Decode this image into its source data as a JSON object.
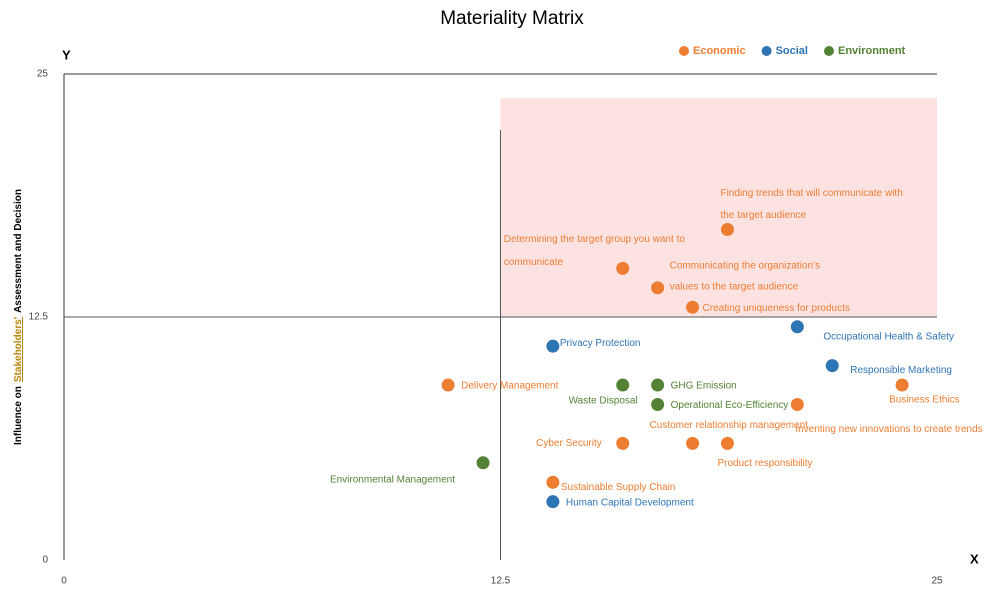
{
  "chart_data": {
    "type": "scatter",
    "title": "Materiality Matrix",
    "xlabel": "X",
    "ylabel": "Y",
    "ylabel_long": [
      "Influence on",
      "Stakeholders'",
      "Assessment and Decision"
    ],
    "xlim": [
      0,
      25
    ],
    "ylim": [
      0,
      25
    ],
    "xticks": [
      0,
      12.5,
      25
    ],
    "yticks": [
      0,
      12.5,
      25
    ],
    "legend": "top",
    "series": [
      {
        "name": "Economic",
        "color": "#ed7d31",
        "x": [
          19,
          16,
          17,
          18,
          11,
          24,
          21,
          16,
          18,
          19,
          14
        ],
        "y": [
          17,
          15,
          14,
          13,
          9,
          9,
          8,
          6,
          6,
          6,
          4
        ],
        "labels": [
          [
            "Finding trends that will communicate with",
            "the target audience"
          ],
          [
            "Determining the target group you want to",
            "communicate"
          ],
          [
            "Communicating the organization's",
            "values to the target audience"
          ],
          [
            "Creating uniqueness for products"
          ],
          [
            "Delivery Management"
          ],
          [
            "Business Ethics"
          ],
          [
            "Inventing new innovations to create trends"
          ],
          [
            "Cyber Security"
          ],
          [
            "Customer relationship management"
          ],
          [
            "Product responsibility"
          ],
          [
            "Sustainable Supply Chain"
          ]
        ]
      },
      {
        "name": "Social",
        "color": "#2e75b6",
        "x": [
          21,
          14,
          22,
          14
        ],
        "y": [
          12,
          11,
          10,
          3
        ],
        "labels": [
          [
            "Occupational Health & Safety"
          ],
          [
            "Privacy Protection"
          ],
          [
            "Responsible Marketing"
          ],
          [
            "Human Capital Development"
          ]
        ]
      },
      {
        "name": "Environment",
        "color": "#548235",
        "x": [
          16,
          17,
          17,
          12
        ],
        "y": [
          9,
          9,
          8,
          5
        ],
        "labels": [
          [
            "Waste Disposal"
          ],
          [
            "GHG Emission"
          ],
          [
            "Operational Eco-Efficiency"
          ],
          [
            "Environmental Management"
          ]
        ]
      }
    ]
  }
}
